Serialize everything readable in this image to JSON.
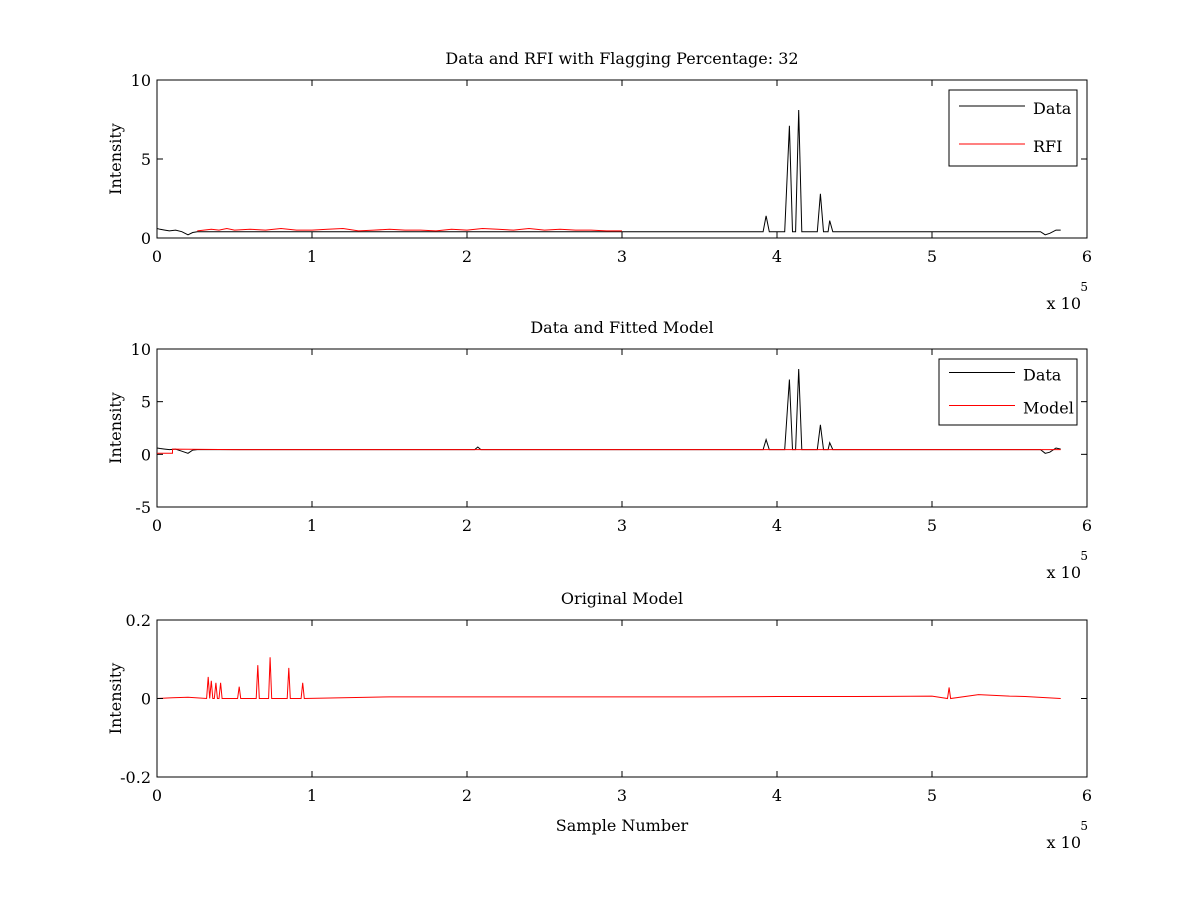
{
  "chart_data": [
    {
      "type": "line",
      "title": "Data and RFI with Flagging Percentage: 32",
      "xlabel": "",
      "ylabel": "Intensity",
      "xlim": [
        0,
        6
      ],
      "ylim": [
        0,
        10
      ],
      "xticks": [
        0,
        1,
        2,
        3,
        4,
        5,
        6
      ],
      "yticks": [
        0,
        5,
        10
      ],
      "xticklabels": [
        "0",
        "1",
        "2",
        "3",
        "4",
        "5",
        "6"
      ],
      "yticklabels": [
        "0",
        "5",
        "10"
      ],
      "x_multiplier_label": "x 10",
      "x_multiplier_exponent": "5",
      "legend": {
        "position": "top-right",
        "entries": [
          "Data",
          "RFI"
        ]
      },
      "series": [
        {
          "name": "Data",
          "color": "#000000",
          "x": [
            0,
            0.02,
            0.05,
            0.08,
            0.12,
            0.16,
            0.2,
            0.23,
            0.26,
            0.4,
            1.0,
            2.0,
            3.0,
            3.5,
            3.85,
            3.91,
            3.93,
            3.95,
            4.05,
            4.08,
            4.1,
            4.12,
            4.14,
            4.16,
            4.26,
            4.28,
            4.3,
            4.33,
            4.34,
            4.36,
            4.5,
            5.0,
            5.5,
            5.7,
            5.73,
            5.76,
            5.8,
            5.83
          ],
          "y": [
            0.6,
            0.55,
            0.5,
            0.45,
            0.5,
            0.4,
            0.2,
            0.35,
            0.4,
            0.4,
            0.4,
            0.4,
            0.4,
            0.4,
            0.4,
            0.4,
            1.4,
            0.4,
            0.4,
            7.1,
            0.4,
            0.4,
            8.1,
            0.4,
            0.4,
            2.8,
            0.4,
            0.4,
            1.1,
            0.4,
            0.4,
            0.4,
            0.4,
            0.4,
            0.2,
            0.3,
            0.5,
            0.5
          ]
        },
        {
          "name": "RFI",
          "color": "#ff0000",
          "x": [
            0.26,
            0.35,
            0.4,
            0.45,
            0.5,
            0.6,
            0.7,
            0.8,
            0.9,
            1.0,
            1.1,
            1.2,
            1.3,
            1.4,
            1.5,
            1.6,
            1.7,
            1.8,
            1.9,
            2.0,
            2.1,
            2.2,
            2.3,
            2.4,
            2.5,
            2.6,
            2.7,
            2.8,
            2.9,
            3.0
          ],
          "y": [
            0.45,
            0.55,
            0.5,
            0.6,
            0.5,
            0.55,
            0.5,
            0.6,
            0.5,
            0.5,
            0.55,
            0.6,
            0.45,
            0.5,
            0.55,
            0.5,
            0.5,
            0.45,
            0.55,
            0.5,
            0.6,
            0.55,
            0.5,
            0.6,
            0.5,
            0.55,
            0.5,
            0.5,
            0.45,
            0.45
          ]
        }
      ]
    },
    {
      "type": "line",
      "title": "Data and Fitted Model",
      "xlabel": "",
      "ylabel": "Intensity",
      "xlim": [
        0,
        6
      ],
      "ylim": [
        -5,
        10
      ],
      "xticks": [
        0,
        1,
        2,
        3,
        4,
        5,
        6
      ],
      "yticks": [
        -5,
        0,
        5,
        10
      ],
      "xticklabels": [
        "0",
        "1",
        "2",
        "3",
        "4",
        "5",
        "6"
      ],
      "yticklabels": [
        "-5",
        "0",
        "5",
        "10"
      ],
      "x_multiplier_label": "x 10",
      "x_multiplier_exponent": "5",
      "legend": {
        "position": "top-right",
        "entries": [
          "Data",
          "Model"
        ]
      },
      "series": [
        {
          "name": "Data",
          "color": "#000000",
          "x": [
            0,
            0.02,
            0.05,
            0.08,
            0.12,
            0.16,
            0.2,
            0.23,
            0.26,
            0.4,
            1.0,
            2.0,
            2.05,
            2.07,
            2.09,
            3.0,
            3.5,
            3.85,
            3.91,
            3.93,
            3.95,
            4.05,
            4.08,
            4.1,
            4.12,
            4.14,
            4.16,
            4.26,
            4.28,
            4.3,
            4.33,
            4.34,
            4.36,
            4.5,
            5.0,
            5.5,
            5.7,
            5.73,
            5.76,
            5.8,
            5.83
          ],
          "y": [
            0.6,
            0.55,
            0.5,
            0.45,
            0.5,
            0.3,
            0.1,
            0.4,
            0.45,
            0.45,
            0.45,
            0.45,
            0.45,
            0.7,
            0.45,
            0.45,
            0.45,
            0.45,
            0.45,
            1.4,
            0.45,
            0.45,
            7.1,
            0.45,
            0.45,
            8.1,
            0.45,
            0.45,
            2.8,
            0.45,
            0.45,
            1.1,
            0.45,
            0.45,
            0.45,
            0.45,
            0.45,
            0.1,
            0.2,
            0.6,
            0.5
          ]
        },
        {
          "name": "Model",
          "color": "#ff0000",
          "x": [
            0,
            0.1,
            0.1,
            0.5,
            1.0,
            2.0,
            3.0,
            4.0,
            5.0,
            5.7,
            5.83
          ],
          "y": [
            0.1,
            0.1,
            0.5,
            0.45,
            0.45,
            0.45,
            0.45,
            0.45,
            0.45,
            0.45,
            0.45
          ]
        }
      ]
    },
    {
      "type": "line",
      "title": "Original Model",
      "xlabel": "Sample Number",
      "ylabel": "Intensity",
      "xlim": [
        0,
        6
      ],
      "ylim": [
        -0.2,
        0.2
      ],
      "xticks": [
        0,
        1,
        2,
        3,
        4,
        5,
        6
      ],
      "yticks": [
        -0.2,
        0,
        0.2
      ],
      "xticklabels": [
        "0",
        "1",
        "2",
        "3",
        "4",
        "5",
        "6"
      ],
      "yticklabels": [
        "-0.2",
        "0",
        "0.2"
      ],
      "x_multiplier_label": "x 10",
      "x_multiplier_exponent": "5",
      "legend": null,
      "series": [
        {
          "color": "#ff0000",
          "x": [
            0,
            0.1,
            0.2,
            0.32,
            0.33,
            0.34,
            0.35,
            0.36,
            0.37,
            0.38,
            0.39,
            0.4,
            0.41,
            0.42,
            0.52,
            0.53,
            0.54,
            0.64,
            0.65,
            0.66,
            0.72,
            0.73,
            0.74,
            0.84,
            0.85,
            0.86,
            0.93,
            0.94,
            0.95,
            1.5,
            2.0,
            2.5,
            3.0,
            3.5,
            4.0,
            4.5,
            5.0,
            5.1,
            5.11,
            5.12,
            5.3,
            5.5,
            5.6,
            5.83
          ],
          "y": [
            0,
            0.002,
            0.003,
            0.0,
            0.055,
            0.0,
            0.045,
            0.0,
            0.0,
            0.04,
            0.0,
            0.0,
            0.04,
            0.0,
            0.0,
            0.03,
            0.0,
            0.0,
            0.085,
            0.0,
            0.0,
            0.105,
            0.0,
            0.0,
            0.078,
            0.0,
            0.0,
            0.04,
            0.0,
            0.004,
            0.004,
            0.004,
            0.004,
            0.004,
            0.005,
            0.005,
            0.006,
            0.0,
            0.028,
            0.0,
            0.01,
            0.006,
            0.005,
            0.0
          ]
        }
      ]
    }
  ]
}
